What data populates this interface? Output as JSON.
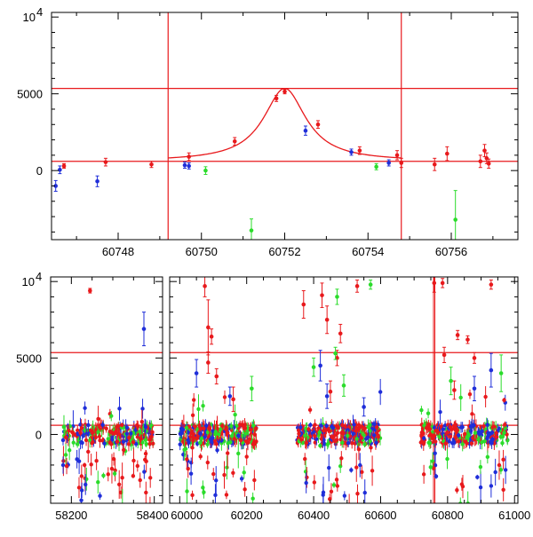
{
  "chart_data": [
    {
      "type": "scatter",
      "panel": "top",
      "title": "",
      "xlabel": "",
      "ylabel": "",
      "xlim": [
        60746.4,
        60757.6
      ],
      "ylim": [
        -4500,
        10300
      ],
      "x_ticks": [
        60748,
        60750,
        60752,
        60754,
        60756
      ],
      "y_ticks": [
        {
          "value": 0,
          "label": "0"
        },
        {
          "value": 5000,
          "label": "5000"
        },
        {
          "value": 10000,
          "label": "10",
          "exp": "4"
        }
      ],
      "hlines": [
        600,
        5350
      ],
      "vlines": [
        60749.2,
        60754.8
      ],
      "model_curve": {
        "color": "#e8191c",
        "center": 60752.0,
        "baseline": 600,
        "peak": 5350,
        "width": 0.62
      },
      "series": [
        {
          "name": "red",
          "color": "#e8191c",
          "points": [
            [
              60746.7,
              300,
              150
            ],
            [
              60747.7,
              550,
              250
            ],
            [
              60748.8,
              400,
              200
            ],
            [
              60749.7,
              900,
              250
            ],
            [
              60750.8,
              1900,
              250
            ],
            [
              60751.8,
              4700,
              200
            ],
            [
              60752.0,
              5150,
              150
            ],
            [
              60752.8,
              3000,
              250
            ],
            [
              60753.8,
              1300,
              250
            ],
            [
              60754.7,
              1000,
              300
            ],
            [
              60754.8,
              500,
              300
            ],
            [
              60755.6,
              400,
              400
            ],
            [
              60755.9,
              1100,
              450
            ],
            [
              60756.7,
              600,
              400
            ],
            [
              60756.8,
              1300,
              400
            ],
            [
              60756.85,
              800,
              350
            ],
            [
              60756.9,
              450,
              300
            ]
          ]
        },
        {
          "name": "blue",
          "color": "#1f2ed9",
          "points": [
            [
              60746.5,
              -1000,
              350
            ],
            [
              60746.6,
              50,
              250
            ],
            [
              60747.5,
              -700,
              350
            ],
            [
              60749.6,
              350,
              200
            ],
            [
              60749.7,
              300,
              200
            ],
            [
              60752.5,
              2600,
              300
            ],
            [
              60753.6,
              1200,
              200
            ],
            [
              60754.5,
              500,
              200
            ]
          ]
        },
        {
          "name": "green",
          "color": "#2bdc2b",
          "points": [
            [
              60750.1,
              0,
              250
            ],
            [
              60751.2,
              -3900,
              750
            ],
            [
              60754.2,
              250,
              200
            ],
            [
              60756.1,
              -3200,
              1900
            ]
          ]
        }
      ]
    },
    {
      "type": "scatter",
      "panel": "bottom",
      "title": "",
      "xlabel": "",
      "ylabel": "",
      "broken_axis": true,
      "segments": [
        [
          58150,
          58420
        ],
        [
          59970,
          61010
        ]
      ],
      "ylim": [
        -4500,
        10300
      ],
      "x_ticks": [
        {
          "value": 58200,
          "label": "58200"
        },
        {
          "value": 58400,
          "label": "58400"
        },
        {
          "value": 60000,
          "label": "60000"
        },
        {
          "value": 60200,
          "label": "60200"
        },
        {
          "value": 60400,
          "label": "60400"
        },
        {
          "value": 60600,
          "label": "60600"
        },
        {
          "value": 60800,
          "label": "60800"
        },
        {
          "value": 61000,
          "label": "61000"
        }
      ],
      "y_ticks": [
        {
          "value": 0,
          "label": "0"
        },
        {
          "value": 5000,
          "label": "5000"
        },
        {
          "value": 10000,
          "label": "10",
          "exp": "4"
        }
      ],
      "hlines": [
        600,
        5350
      ],
      "dense_seasons": [
        [
          58180,
          58400
        ],
        [
          60000,
          60230
        ],
        [
          60350,
          60600
        ],
        [
          60720,
          60980
        ]
      ],
      "series": [
        {
          "name": "red",
          "color": "#e8191c",
          "points": [
            [
              58245,
              9400,
              150
            ],
            [
              60075,
              9700,
              700
            ],
            [
              60085,
              7000,
              1800
            ],
            [
              60095,
              6400,
              500
            ],
            [
              60085,
              4700,
              700
            ],
            [
              60370,
              8500,
              900
            ],
            [
              60425,
              9100,
              800
            ],
            [
              60440,
              7500,
              900
            ],
            [
              60480,
              6600,
              600
            ],
            [
              60530,
              9700,
              400
            ],
            [
              60470,
              5000,
              500
            ],
            [
              60760,
              9900,
              600
            ],
            [
              60830,
              6500,
              300
            ],
            [
              60860,
              6200,
              250
            ],
            [
              60880,
              5000,
              350
            ],
            [
              60930,
              9800,
              300
            ],
            [
              60110,
              3800,
              500
            ],
            [
              60160,
              2300,
              800
            ],
            [
              60450,
              2800,
              700
            ],
            [
              60820,
              2900,
              600
            ],
            [
              60790,
              5200,
              500
            ],
            [
              60785,
              9900,
              300
            ]
          ]
        },
        {
          "name": "blue",
          "color": "#1f2ed9",
          "points": [
            [
              58375,
              6900,
              1100
            ],
            [
              60050,
              4000,
              900
            ],
            [
              60420,
              4500,
              1000
            ],
            [
              60440,
              2500,
              800
            ],
            [
              60930,
              4200,
              1100
            ],
            [
              60880,
              3000,
              800
            ],
            [
              60150,
              2500,
              600
            ],
            [
              60550,
              1800,
              600
            ]
          ]
        },
        {
          "name": "green",
          "color": "#2bdc2b",
          "points": [
            [
              60570,
              9800,
              300
            ],
            [
              60470,
              9000,
              500
            ],
            [
              60465,
              5300,
              400
            ],
            [
              60400,
              4400,
              600
            ],
            [
              60960,
              4000,
              1200
            ],
            [
              60215,
              3000,
              800
            ],
            [
              60490,
              3200,
              700
            ],
            [
              60810,
              3500,
              900
            ]
          ]
        }
      ]
    }
  ]
}
